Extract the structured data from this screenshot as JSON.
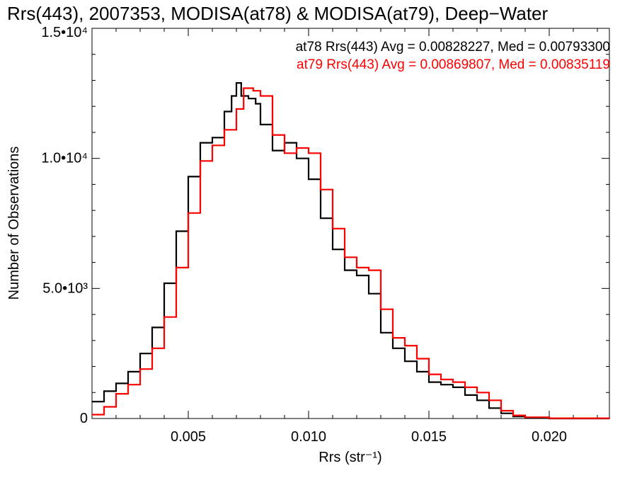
{
  "chart_data": {
    "type": "histogram-step",
    "title": "Rrs(443), 2007353, MODISA(at78) & MODISA(at79), Deep−Water",
    "xlabel": "Rrs (str⁻¹)",
    "ylabel": "Number of Observations",
    "xlim": [
      0.001,
      0.0225
    ],
    "ylim": [
      0,
      15000
    ],
    "x_ticks": [
      {
        "value": 0.005,
        "label": "0.005"
      },
      {
        "value": 0.01,
        "label": "0.010"
      },
      {
        "value": 0.015,
        "label": "0.015"
      },
      {
        "value": 0.02,
        "label": "0.020"
      }
    ],
    "y_ticks": [
      {
        "value": 0,
        "label": "0"
      },
      {
        "value": 5000,
        "label": "5.0•10³"
      },
      {
        "value": 10000,
        "label": "1.0•10⁴"
      },
      {
        "value": 15000,
        "label": "1.5•10⁴"
      }
    ],
    "legend_placement": "top-right",
    "series": [
      {
        "name": "at78",
        "legend_text": "at78 Rrs(443) Avg = 0.00828227, Med = 0.00793300",
        "color": "#000000",
        "points": [
          [
            0.001,
            650
          ],
          [
            0.0015,
            1050
          ],
          [
            0.002,
            1350
          ],
          [
            0.0025,
            1800
          ],
          [
            0.003,
            2500
          ],
          [
            0.0035,
            3500
          ],
          [
            0.004,
            5200
          ],
          [
            0.0045,
            7200
          ],
          [
            0.005,
            9300
          ],
          [
            0.0055,
            10600
          ],
          [
            0.006,
            10800
          ],
          [
            0.0065,
            11800
          ],
          [
            0.0068,
            12400
          ],
          [
            0.007,
            12900
          ],
          [
            0.0072,
            12400
          ],
          [
            0.0075,
            12300
          ],
          [
            0.0078,
            12100
          ],
          [
            0.008,
            11300
          ],
          [
            0.0085,
            10300
          ],
          [
            0.009,
            10600
          ],
          [
            0.0095,
            10000
          ],
          [
            0.01,
            9200
          ],
          [
            0.0105,
            7700
          ],
          [
            0.011,
            6500
          ],
          [
            0.0115,
            5700
          ],
          [
            0.012,
            5500
          ],
          [
            0.0125,
            4800
          ],
          [
            0.013,
            3300
          ],
          [
            0.0135,
            2700
          ],
          [
            0.014,
            2200
          ],
          [
            0.0145,
            1800
          ],
          [
            0.015,
            1400
          ],
          [
            0.0155,
            1300
          ],
          [
            0.016,
            1200
          ],
          [
            0.0165,
            900
          ],
          [
            0.017,
            700
          ],
          [
            0.0175,
            400
          ],
          [
            0.018,
            200
          ],
          [
            0.0185,
            80
          ],
          [
            0.019,
            30
          ],
          [
            0.02,
            0
          ],
          [
            0.0225,
            0
          ]
        ]
      },
      {
        "name": "at79",
        "legend_text": "at79 Rrs(443) Avg = 0.00869807, Med = 0.00835119",
        "color": "#ff0000",
        "points": [
          [
            0.001,
            150
          ],
          [
            0.0015,
            450
          ],
          [
            0.002,
            950
          ],
          [
            0.0025,
            1300
          ],
          [
            0.003,
            1900
          ],
          [
            0.0035,
            2700
          ],
          [
            0.004,
            3900
          ],
          [
            0.0045,
            5800
          ],
          [
            0.005,
            7900
          ],
          [
            0.0055,
            9900
          ],
          [
            0.006,
            10500
          ],
          [
            0.0065,
            11100
          ],
          [
            0.007,
            11900
          ],
          [
            0.0073,
            12700
          ],
          [
            0.0077,
            12600
          ],
          [
            0.008,
            12400
          ],
          [
            0.0085,
            10900
          ],
          [
            0.009,
            10200
          ],
          [
            0.0095,
            10400
          ],
          [
            0.01,
            10200
          ],
          [
            0.0105,
            8800
          ],
          [
            0.011,
            7300
          ],
          [
            0.0115,
            6200
          ],
          [
            0.012,
            5800
          ],
          [
            0.0125,
            5700
          ],
          [
            0.013,
            4200
          ],
          [
            0.0135,
            3100
          ],
          [
            0.014,
            2800
          ],
          [
            0.0145,
            2300
          ],
          [
            0.015,
            1700
          ],
          [
            0.0155,
            1500
          ],
          [
            0.016,
            1400
          ],
          [
            0.0165,
            1200
          ],
          [
            0.017,
            1000
          ],
          [
            0.0175,
            700
          ],
          [
            0.018,
            300
          ],
          [
            0.0185,
            120
          ],
          [
            0.019,
            50
          ],
          [
            0.02,
            10
          ],
          [
            0.0225,
            0
          ]
        ]
      }
    ]
  }
}
